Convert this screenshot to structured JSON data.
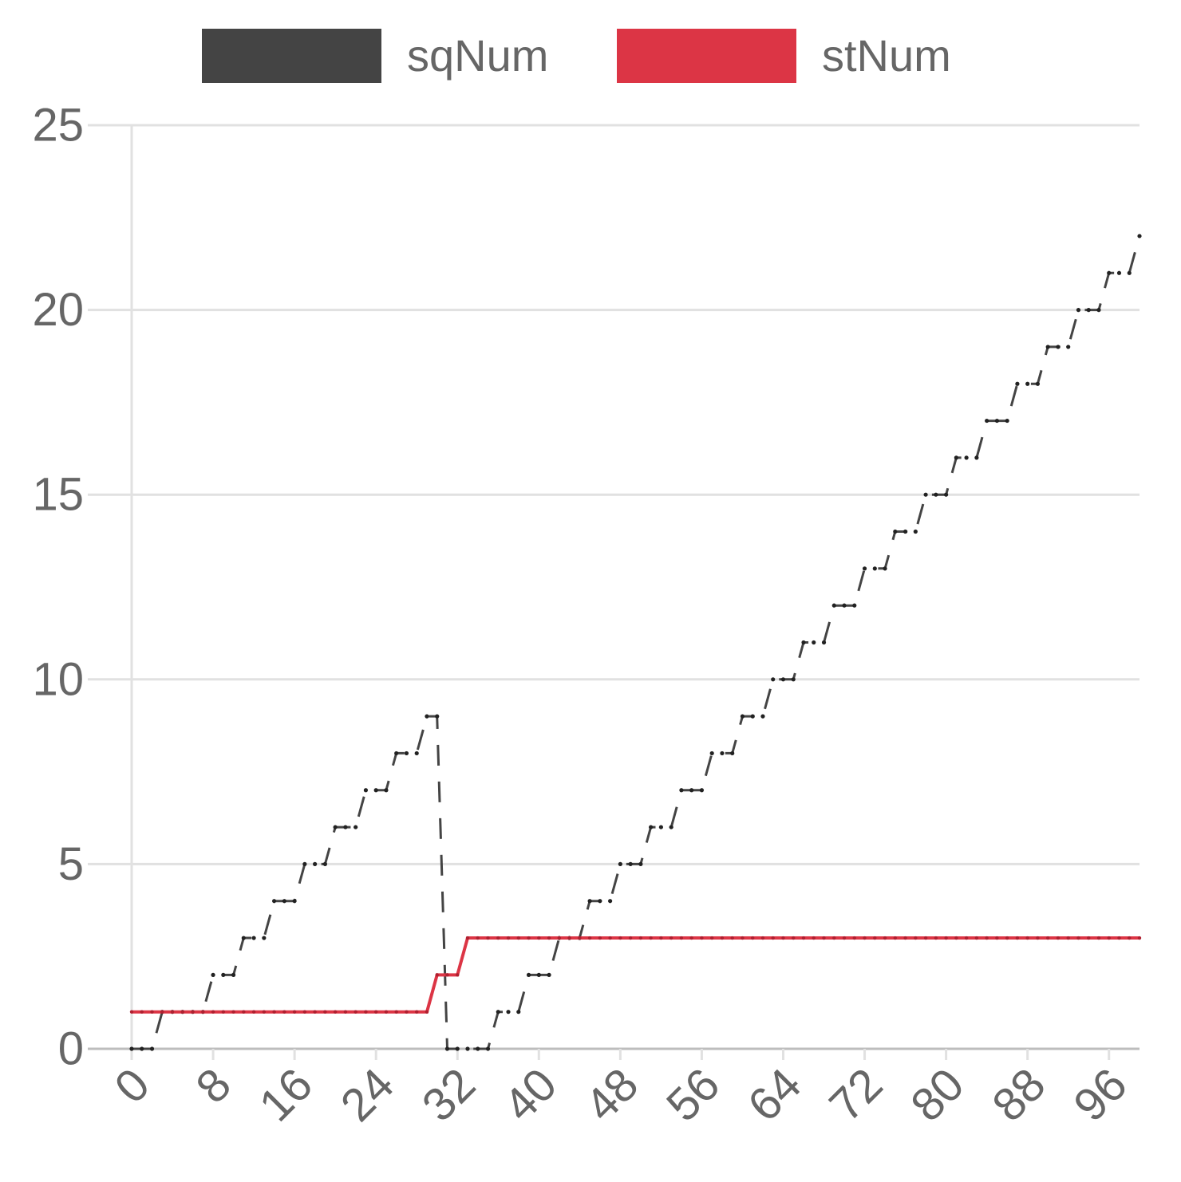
{
  "chart_data": {
    "type": "line",
    "title": "",
    "xlabel": "",
    "ylabel": "",
    "x_ticks": [
      "0",
      "8",
      "16",
      "24",
      "32",
      "40",
      "48",
      "56",
      "64",
      "72",
      "80",
      "88",
      "96"
    ],
    "y_ticks": [
      "0",
      "5",
      "10",
      "15",
      "20",
      "25"
    ],
    "xlim": [
      0,
      99
    ],
    "ylim": [
      0,
      25
    ],
    "grid": true,
    "legend_position": "top",
    "series": [
      {
        "name": "sqNum",
        "color": "#444444",
        "line_style": "dashed",
        "values": [
          0,
          0,
          0,
          1,
          1,
          1,
          1,
          1,
          2,
          2,
          2,
          3,
          3,
          3,
          4,
          4,
          4,
          5,
          5,
          5,
          6,
          6,
          6,
          7,
          7,
          7,
          8,
          8,
          8,
          9,
          9,
          0,
          0,
          0,
          0,
          0,
          1,
          1,
          1,
          2,
          2,
          2,
          3,
          3,
          3,
          4,
          4,
          4,
          5,
          5,
          5,
          6,
          6,
          6,
          7,
          7,
          7,
          8,
          8,
          8,
          9,
          9,
          9,
          10,
          10,
          10,
          11,
          11,
          11,
          12,
          12,
          12,
          13,
          13,
          13,
          14,
          14,
          14,
          15,
          15,
          15,
          16,
          16,
          16,
          17,
          17,
          17,
          18,
          18,
          18,
          19,
          19,
          19,
          20,
          20,
          20,
          21,
          21,
          21,
          22
        ]
      },
      {
        "name": "stNum",
        "color": "#dc3545",
        "line_style": "solid",
        "values": [
          1,
          1,
          1,
          1,
          1,
          1,
          1,
          1,
          1,
          1,
          1,
          1,
          1,
          1,
          1,
          1,
          1,
          1,
          1,
          1,
          1,
          1,
          1,
          1,
          1,
          1,
          1,
          1,
          1,
          1,
          2,
          2,
          2,
          3,
          3,
          3,
          3,
          3,
          3,
          3,
          3,
          3,
          3,
          3,
          3,
          3,
          3,
          3,
          3,
          3,
          3,
          3,
          3,
          3,
          3,
          3,
          3,
          3,
          3,
          3,
          3,
          3,
          3,
          3,
          3,
          3,
          3,
          3,
          3,
          3,
          3,
          3,
          3,
          3,
          3,
          3,
          3,
          3,
          3,
          3,
          3,
          3,
          3,
          3,
          3,
          3,
          3,
          3,
          3,
          3,
          3,
          3,
          3,
          3,
          3,
          3,
          3,
          3,
          3,
          3
        ]
      }
    ]
  }
}
